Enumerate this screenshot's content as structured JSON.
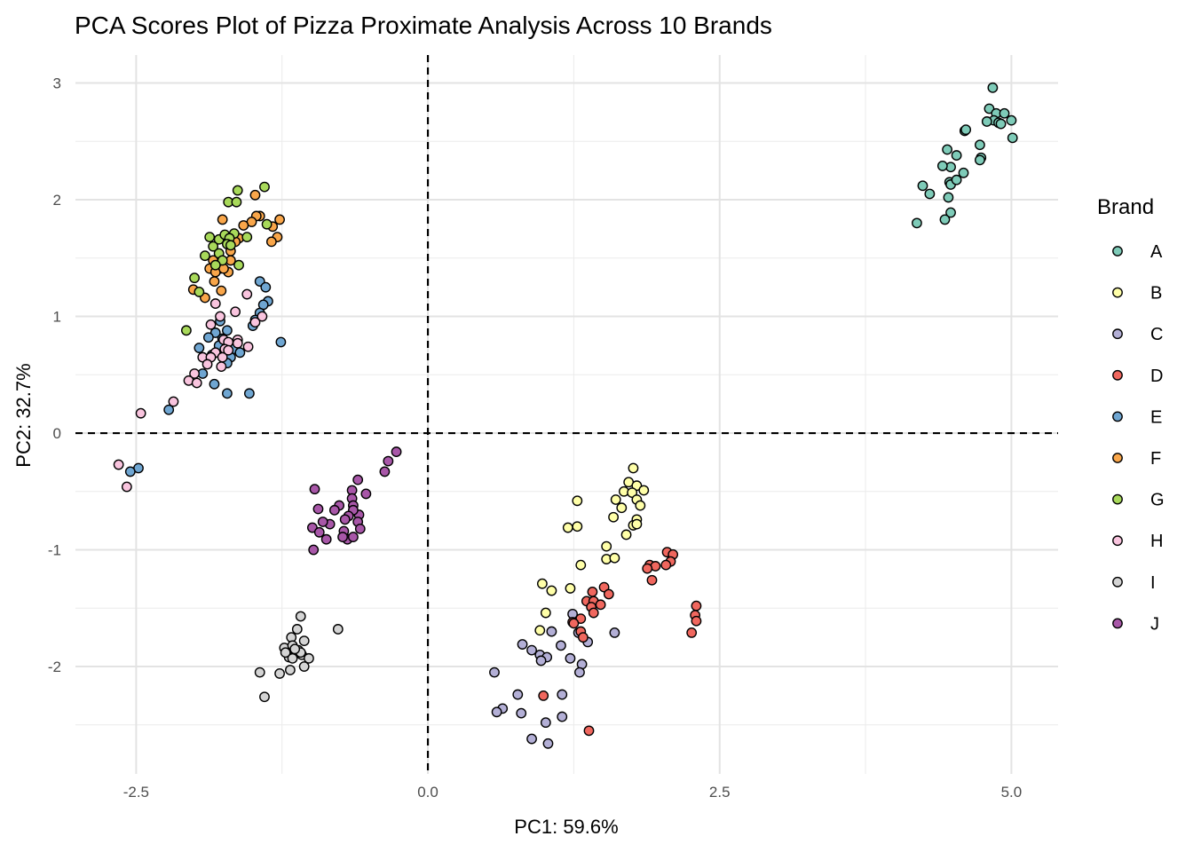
{
  "chart_data": {
    "type": "scatter",
    "title": "PCA Scores Plot of Pizza Proximate Analysis Across 10 Brands",
    "xlabel": "PC1: 59.6%",
    "ylabel": "PC2: 32.7%",
    "xlim": [
      -3.02,
      5.4
    ],
    "ylim": [
      -2.92,
      3.24
    ],
    "xticks": [
      -2.5,
      0.0,
      2.5,
      5.0
    ],
    "xtick_labels": [
      "-2.5",
      "0.0",
      "2.5",
      "5.0"
    ],
    "yticks": [
      -2,
      -1,
      0,
      1,
      2,
      3
    ],
    "ytick_labels": [
      "-2",
      "-1",
      "0",
      "1",
      "2",
      "3"
    ],
    "grid": true,
    "reference_lines": {
      "x": 0,
      "y": 0,
      "style": "dashed"
    },
    "legend": {
      "title": "Brand",
      "placement": "right"
    },
    "series": [
      {
        "name": "A",
        "color": "#7ECBB8",
        "points": [
          [
            4.84,
            2.96
          ],
          [
            4.81,
            2.78
          ],
          [
            4.87,
            2.74
          ],
          [
            4.85,
            2.68
          ],
          [
            4.79,
            2.67
          ],
          [
            4.89,
            2.66
          ],
          [
            4.94,
            2.74
          ],
          [
            5.0,
            2.68
          ],
          [
            4.91,
            2.65
          ],
          [
            5.01,
            2.53
          ],
          [
            4.6,
            2.59
          ],
          [
            4.61,
            2.6
          ],
          [
            4.73,
            2.47
          ],
          [
            4.74,
            2.36
          ],
          [
            4.73,
            2.34
          ],
          [
            4.59,
            2.23
          ],
          [
            4.53,
            2.38
          ],
          [
            4.45,
            2.43
          ],
          [
            4.48,
            2.28
          ],
          [
            4.41,
            2.29
          ],
          [
            4.47,
            2.15
          ],
          [
            4.48,
            2.13
          ],
          [
            4.46,
            2.02
          ],
          [
            4.48,
            1.89
          ],
          [
            4.43,
            1.83
          ],
          [
            4.3,
            2.05
          ],
          [
            4.24,
            2.12
          ],
          [
            4.19,
            1.8
          ],
          [
            4.53,
            2.17
          ]
        ]
      },
      {
        "name": "B",
        "color": "#FFFFA8",
        "points": [
          [
            1.76,
            -0.3
          ],
          [
            1.72,
            -0.42
          ],
          [
            1.79,
            -0.45
          ],
          [
            1.85,
            -0.49
          ],
          [
            1.68,
            -0.5
          ],
          [
            1.75,
            -0.51
          ],
          [
            1.28,
            -0.58
          ],
          [
            1.61,
            -0.57
          ],
          [
            1.79,
            -0.57
          ],
          [
            1.82,
            -0.62
          ],
          [
            1.66,
            -0.64
          ],
          [
            1.59,
            -0.72
          ],
          [
            1.79,
            -0.74
          ],
          [
            1.76,
            -0.79
          ],
          [
            1.79,
            -0.78
          ],
          [
            1.7,
            -0.87
          ],
          [
            1.2,
            -0.81
          ],
          [
            1.28,
            -0.8
          ],
          [
            1.53,
            -0.97
          ],
          [
            1.53,
            -1.08
          ],
          [
            1.6,
            -1.07
          ],
          [
            1.31,
            -1.13
          ],
          [
            0.98,
            -1.29
          ],
          [
            1.06,
            -1.35
          ],
          [
            1.22,
            -1.33
          ],
          [
            1.01,
            -1.54
          ],
          [
            0.96,
            -1.69
          ]
        ]
      },
      {
        "name": "C",
        "color": "#B3AFD6",
        "points": [
          [
            1.24,
            -1.55
          ],
          [
            1.06,
            -1.7
          ],
          [
            0.81,
            -1.81
          ],
          [
            0.89,
            -1.86
          ],
          [
            0.96,
            -1.9
          ],
          [
            1.02,
            -1.92
          ],
          [
            0.97,
            -1.95
          ],
          [
            1.14,
            -1.82
          ],
          [
            1.22,
            -1.93
          ],
          [
            1.29,
            -1.71
          ],
          [
            1.6,
            -1.71
          ],
          [
            1.37,
            -1.79
          ],
          [
            1.32,
            -1.98
          ],
          [
            1.3,
            -2.05
          ],
          [
            0.57,
            -2.05
          ],
          [
            0.77,
            -2.24
          ],
          [
            1.15,
            -2.24
          ],
          [
            0.64,
            -2.36
          ],
          [
            0.59,
            -2.39
          ],
          [
            0.8,
            -2.4
          ],
          [
            1.15,
            -2.43
          ],
          [
            1.01,
            -2.48
          ],
          [
            0.89,
            -2.62
          ],
          [
            1.03,
            -2.66
          ]
        ]
      },
      {
        "name": "D",
        "color": "#F0675E",
        "points": [
          [
            2.05,
            -1.02
          ],
          [
            2.1,
            -1.04
          ],
          [
            2.08,
            -1.1
          ],
          [
            2.04,
            -1.13
          ],
          [
            1.9,
            -1.13
          ],
          [
            1.95,
            -1.14
          ],
          [
            1.88,
            -1.16
          ],
          [
            1.92,
            -1.26
          ],
          [
            1.51,
            -1.32
          ],
          [
            1.41,
            -1.36
          ],
          [
            1.55,
            -1.38
          ],
          [
            1.36,
            -1.44
          ],
          [
            1.42,
            -1.44
          ],
          [
            1.48,
            -1.47
          ],
          [
            1.4,
            -1.49
          ],
          [
            1.42,
            -1.54
          ],
          [
            1.31,
            -1.59
          ],
          [
            1.24,
            -1.62
          ],
          [
            1.25,
            -1.63
          ],
          [
            1.31,
            -1.7
          ],
          [
            1.33,
            -1.75
          ],
          [
            2.3,
            -1.48
          ],
          [
            2.29,
            -1.56
          ],
          [
            2.3,
            -1.61
          ],
          [
            2.26,
            -1.71
          ],
          [
            0.99,
            -2.25
          ],
          [
            1.38,
            -2.55
          ]
        ]
      },
      {
        "name": "E",
        "color": "#6FA6D2",
        "points": [
          [
            -1.44,
            1.3
          ],
          [
            -1.39,
            1.25
          ],
          [
            -1.37,
            1.13
          ],
          [
            -1.41,
            1.1
          ],
          [
            -1.44,
            1.03
          ],
          [
            -1.48,
            0.97
          ],
          [
            -1.5,
            0.92
          ],
          [
            -1.26,
            0.78
          ],
          [
            -1.78,
            0.96
          ],
          [
            -1.82,
            0.86
          ],
          [
            -1.72,
            0.88
          ],
          [
            -1.88,
            0.82
          ],
          [
            -1.96,
            0.73
          ],
          [
            -1.76,
            0.81
          ],
          [
            -1.67,
            0.72
          ],
          [
            -1.69,
            0.65
          ],
          [
            -1.61,
            0.69
          ],
          [
            -1.72,
            0.6
          ],
          [
            -1.93,
            0.51
          ],
          [
            -1.83,
            0.42
          ],
          [
            -1.72,
            0.34
          ],
          [
            -1.53,
            0.34
          ],
          [
            -2.22,
            0.2
          ],
          [
            -1.85,
            0.67
          ],
          [
            -1.79,
            0.75
          ],
          [
            -2.48,
            -0.3
          ],
          [
            -2.55,
            -0.33
          ]
        ]
      },
      {
        "name": "F",
        "color": "#F9A64A",
        "points": [
          [
            -1.48,
            2.04
          ],
          [
            -1.76,
            1.83
          ],
          [
            -1.44,
            1.86
          ],
          [
            -1.47,
            1.86
          ],
          [
            -1.51,
            1.81
          ],
          [
            -1.58,
            1.78
          ],
          [
            -1.27,
            1.83
          ],
          [
            -1.33,
            1.77
          ],
          [
            -1.29,
            1.68
          ],
          [
            -1.34,
            1.64
          ],
          [
            -1.62,
            1.67
          ],
          [
            -1.65,
            1.64
          ],
          [
            -1.69,
            1.56
          ],
          [
            -1.69,
            1.48
          ],
          [
            -1.84,
            1.48
          ],
          [
            -1.87,
            1.41
          ],
          [
            -1.78,
            1.41
          ],
          [
            -1.71,
            1.38
          ],
          [
            -1.82,
            1.38
          ],
          [
            -1.83,
            1.3
          ],
          [
            -2.01,
            1.23
          ],
          [
            -1.91,
            1.16
          ],
          [
            -1.77,
            1.22
          ],
          [
            -1.75,
            1.41
          ]
        ]
      },
      {
        "name": "G",
        "color": "#A8D95A",
        "points": [
          [
            -1.63,
            2.08
          ],
          [
            -1.4,
            2.11
          ],
          [
            -1.71,
            1.98
          ],
          [
            -1.64,
            1.98
          ],
          [
            -1.38,
            1.79
          ],
          [
            -1.87,
            1.68
          ],
          [
            -1.79,
            1.66
          ],
          [
            -1.74,
            1.7
          ],
          [
            -1.66,
            1.71
          ],
          [
            -1.7,
            1.67
          ],
          [
            -1.55,
            1.68
          ],
          [
            -1.84,
            1.6
          ],
          [
            -1.72,
            1.62
          ],
          [
            -1.91,
            1.52
          ],
          [
            -1.79,
            1.54
          ],
          [
            -1.76,
            1.48
          ],
          [
            -1.82,
            1.44
          ],
          [
            -1.62,
            1.44
          ],
          [
            -2.0,
            1.33
          ],
          [
            -1.96,
            1.21
          ],
          [
            -2.07,
            0.88
          ],
          [
            -1.69,
            1.61
          ]
        ]
      },
      {
        "name": "H",
        "color": "#F9C4DE",
        "points": [
          [
            -1.55,
            1.19
          ],
          [
            -1.82,
            1.11
          ],
          [
            -1.65,
            1.04
          ],
          [
            -1.78,
            1.0
          ],
          [
            -1.86,
            0.93
          ],
          [
            -1.42,
            1.0
          ],
          [
            -1.48,
            0.95
          ],
          [
            -1.75,
            0.8
          ],
          [
            -1.63,
            0.8
          ],
          [
            -1.71,
            0.78
          ],
          [
            -1.54,
            0.74
          ],
          [
            -1.74,
            0.72
          ],
          [
            -1.82,
            0.69
          ],
          [
            -1.93,
            0.65
          ],
          [
            -1.86,
            0.65
          ],
          [
            -1.76,
            0.65
          ],
          [
            -1.89,
            0.59
          ],
          [
            -1.77,
            0.57
          ],
          [
            -2.0,
            0.51
          ],
          [
            -2.05,
            0.45
          ],
          [
            -1.98,
            0.43
          ],
          [
            -2.18,
            0.27
          ],
          [
            -1.63,
            0.77
          ],
          [
            -1.71,
            0.71
          ],
          [
            -2.46,
            0.17
          ],
          [
            -2.65,
            -0.27
          ],
          [
            -2.58,
            -0.46
          ]
        ]
      },
      {
        "name": "I",
        "color": "#D4D4D4",
        "points": [
          [
            -1.09,
            -1.57
          ],
          [
            -1.12,
            -1.68
          ],
          [
            -1.17,
            -1.75
          ],
          [
            -1.06,
            -1.78
          ],
          [
            -1.23,
            -1.84
          ],
          [
            -1.16,
            -1.82
          ],
          [
            -1.11,
            -1.86
          ],
          [
            -1.08,
            -1.9
          ],
          [
            -1.02,
            -1.93
          ],
          [
            -1.19,
            -1.92
          ],
          [
            -1.16,
            -1.93
          ],
          [
            -1.09,
            -1.88
          ],
          [
            -1.22,
            -1.88
          ],
          [
            -1.06,
            -2.0
          ],
          [
            -1.18,
            -2.03
          ],
          [
            -1.27,
            -2.06
          ],
          [
            -1.44,
            -2.05
          ],
          [
            -1.4,
            -2.26
          ],
          [
            -0.77,
            -1.68
          ],
          [
            -1.14,
            -1.85
          ]
        ]
      },
      {
        "name": "J",
        "color": "#A857A8",
        "points": [
          [
            -0.27,
            -0.16
          ],
          [
            -0.34,
            -0.24
          ],
          [
            -0.37,
            -0.33
          ],
          [
            -0.6,
            -0.4
          ],
          [
            -0.65,
            -0.49
          ],
          [
            -0.65,
            -0.56
          ],
          [
            -0.53,
            -0.52
          ],
          [
            -0.64,
            -0.62
          ],
          [
            -0.59,
            -0.7
          ],
          [
            -0.6,
            -0.76
          ],
          [
            -0.64,
            -0.66
          ],
          [
            -0.68,
            -0.71
          ],
          [
            -0.76,
            -0.62
          ],
          [
            -0.8,
            -0.66
          ],
          [
            -0.71,
            -0.74
          ],
          [
            -0.84,
            -0.78
          ],
          [
            -0.9,
            -0.76
          ],
          [
            -0.99,
            -0.81
          ],
          [
            -0.93,
            -0.85
          ],
          [
            -0.87,
            -0.91
          ],
          [
            -0.72,
            -0.84
          ],
          [
            -0.58,
            -0.82
          ],
          [
            -0.69,
            -0.91
          ],
          [
            -0.73,
            -0.89
          ],
          [
            -0.94,
            -0.65
          ],
          [
            -0.97,
            -0.48
          ],
          [
            -0.98,
            -1.0
          ],
          [
            -0.64,
            -0.89
          ]
        ]
      }
    ]
  }
}
